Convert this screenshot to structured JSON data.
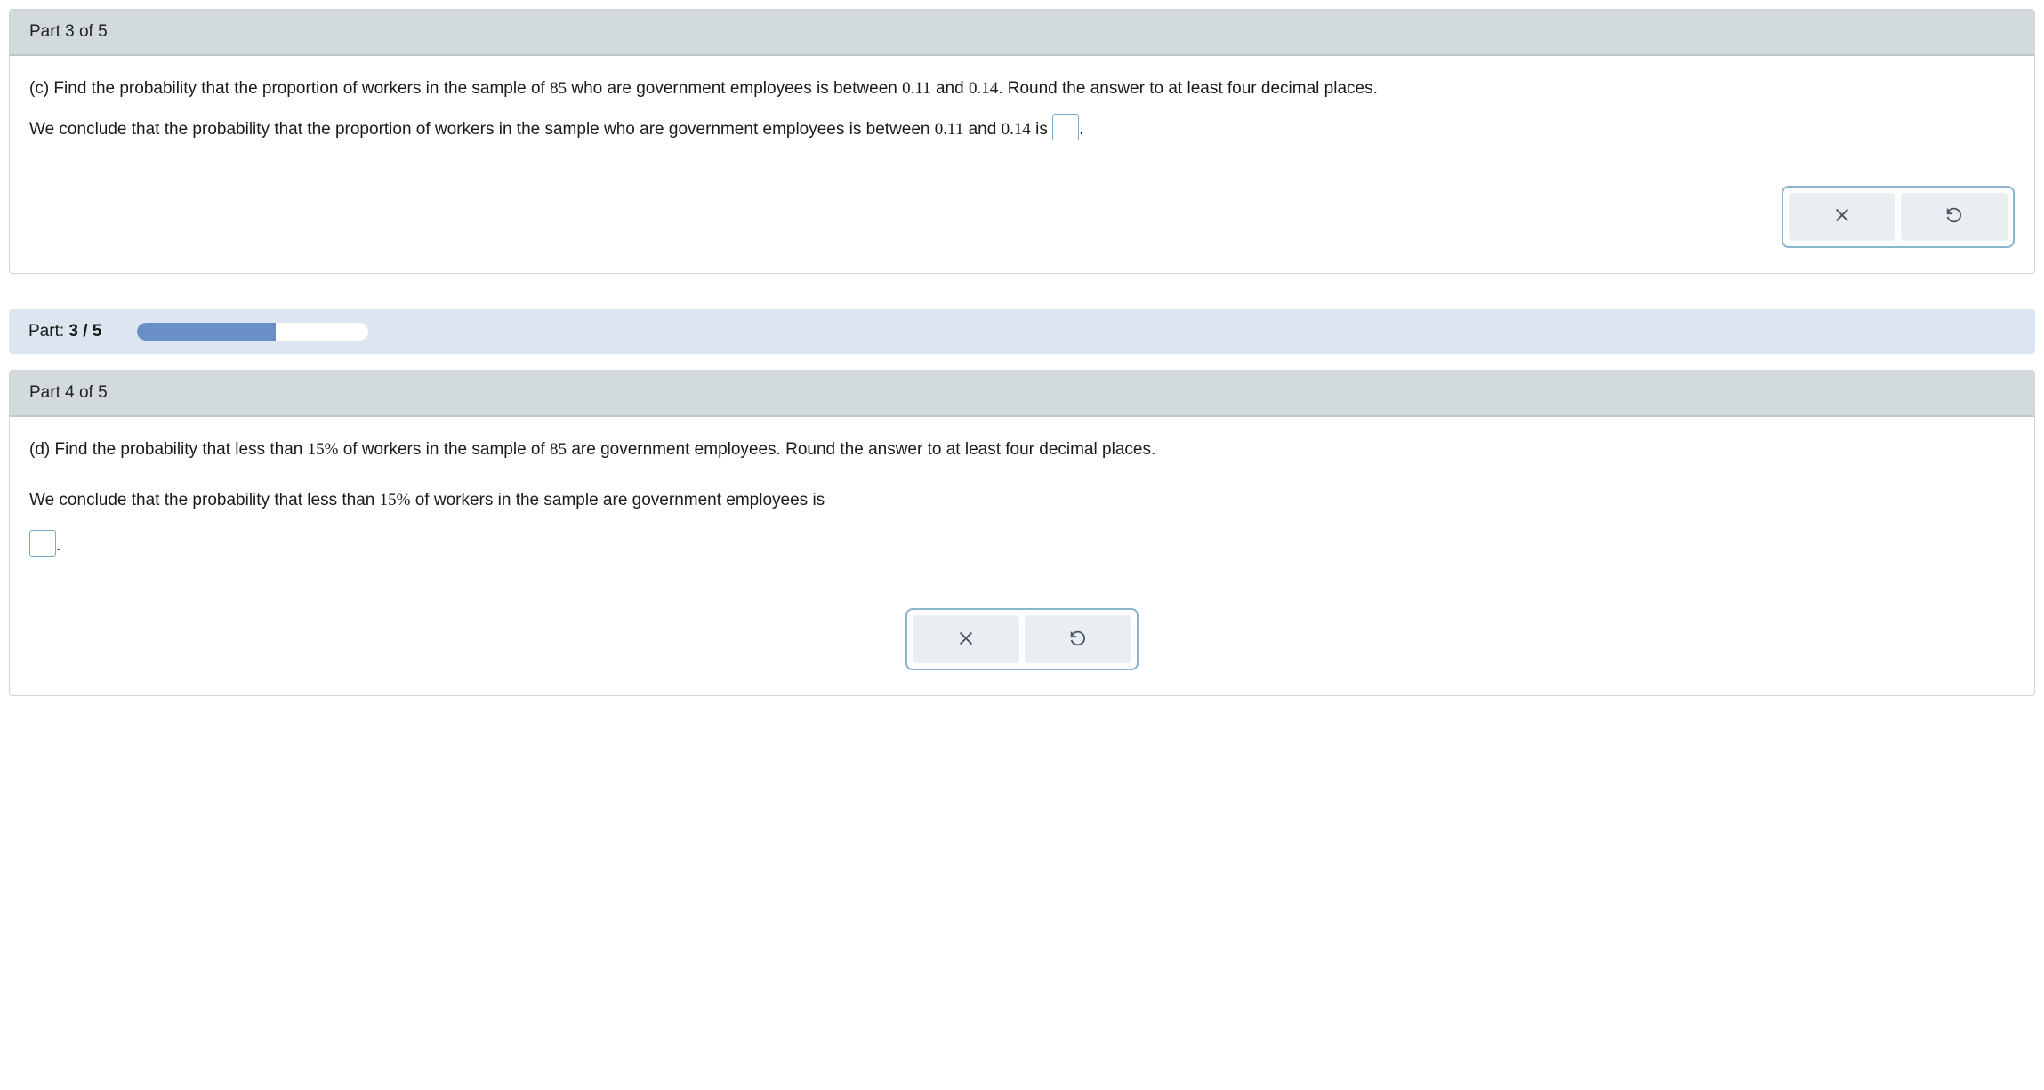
{
  "part3": {
    "header": "Part 3 of 5",
    "question_prefix": "(c) Find the probability that the proportion of workers in the sample of ",
    "sample_n": "85",
    "question_mid1": " who are government employees is between ",
    "low": "0.11",
    "and": " and ",
    "high": "0.14",
    "question_suffix": ". Round the answer to at least four decimal places.",
    "conclude_prefix": "We conclude that the probability that the proportion of workers in the sample who are government employees is between ",
    "conclude_mid": " and ",
    "conclude_suffix": " is ",
    "period": "."
  },
  "progress": {
    "label_prefix": "Part: ",
    "label_value": "3 / 5",
    "percent": 60
  },
  "part4": {
    "header": "Part 4 of 5",
    "question_prefix": "(d) Find the probability that less than ",
    "pct": "15%",
    "question_mid1": " of workers in the sample of ",
    "sample_n": "85",
    "question_suffix": " are government employees. Round the answer to at least four decimal places.",
    "conclude_prefix": "We conclude that the probability that less than ",
    "conclude_suffix": " of workers in the sample are government employees is",
    "period": "."
  },
  "colors": {
    "header_bg": "#d3dade",
    "progress_bg": "#dbe6f0",
    "progress_fill": "#6a8fc7",
    "action_border": "#8ab5cf",
    "action_btn_bg": "#e9eef2",
    "answer_border": "#7aa9c9"
  }
}
